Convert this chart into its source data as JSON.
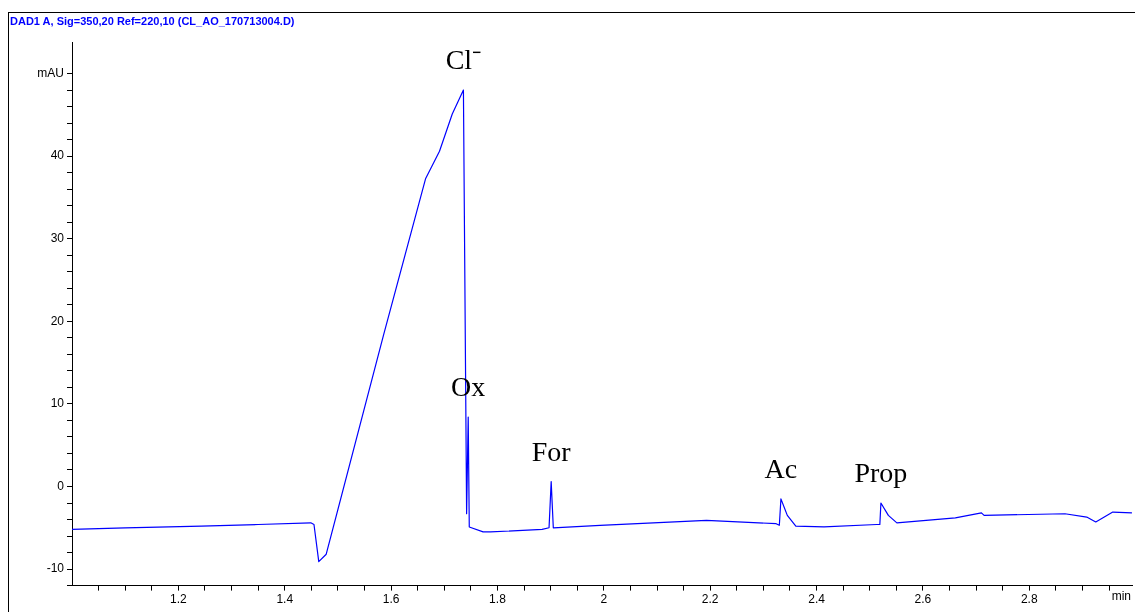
{
  "chart_data": {
    "type": "line",
    "title": "DAD1 A, Sig=350,20 Ref=220,10 (CL_AO_170713004.D)",
    "xlabel": "min",
    "x": [
      1.0,
      1.1,
      1.243,
      1.35,
      1.449,
      1.455,
      1.464,
      1.478,
      1.586,
      1.665,
      1.691,
      1.715,
      1.736,
      1.742,
      1.745,
      1.747,
      1.773,
      1.787,
      1.884,
      1.897,
      1.901,
      1.905,
      1.993,
      2.193,
      2.324,
      2.33,
      2.333,
      2.345,
      2.361,
      2.414,
      2.513,
      2.519,
      2.521,
      2.535,
      2.551,
      2.661,
      2.71,
      2.715,
      2.867,
      2.908,
      2.925,
      2.957,
      2.993
    ],
    "series": [
      {
        "color": "#0000ff",
        "values": [
          -5.2,
          -5.0,
          -4.8,
          -4.6,
          -4.4,
          -4.6,
          -9.1,
          -8.2,
          18.4,
          37.3,
          40.6,
          45.1,
          48.0,
          -3.3,
          8.4,
          -4.9,
          -5.5,
          -5.5,
          -5.2,
          -5.0,
          0.6,
          -5.0,
          -4.7,
          -4.1,
          -4.5,
          -4.7,
          -1.5,
          -3.5,
          -4.8,
          -4.9,
          -4.6,
          -4.6,
          -2.0,
          -3.5,
          -4.4,
          -3.8,
          -3.2,
          -3.5,
          -3.3,
          -3.7,
          -4.3,
          -3.1,
          -3.2
        ]
      }
    ],
    "xlim": [
      1.0,
      2.995
    ],
    "ylim": [
      -12,
      53.8
    ],
    "xticks": [
      {
        "value": 1.05,
        "label": null
      },
      {
        "value": 1.1,
        "label": null
      },
      {
        "value": 1.15,
        "label": null
      },
      1.2,
      {
        "value": 1.25,
        "label": null
      },
      {
        "value": 1.3,
        "label": null
      },
      {
        "value": 1.35,
        "label": null
      },
      1.4,
      {
        "value": 1.45,
        "label": null
      },
      {
        "value": 1.5,
        "label": null
      },
      {
        "value": 1.55,
        "label": null
      },
      1.6,
      {
        "value": 1.65,
        "label": null
      },
      {
        "value": 1.7,
        "label": null
      },
      {
        "value": 1.75,
        "label": null
      },
      1.8,
      {
        "value": 1.85,
        "label": null
      },
      {
        "value": 1.9,
        "label": null
      },
      {
        "value": 1.95,
        "label": null
      },
      2,
      {
        "value": 2.05,
        "label": null
      },
      {
        "value": 2.1,
        "label": null
      },
      {
        "value": 2.15,
        "label": null
      },
      2.2,
      {
        "value": 2.25,
        "label": null
      },
      {
        "value": 2.3,
        "label": null
      },
      {
        "value": 2.35,
        "label": null
      },
      2.4,
      {
        "value": 2.45,
        "label": null
      },
      {
        "value": 2.5,
        "label": null
      },
      {
        "value": 2.55,
        "label": null
      },
      2.6,
      {
        "value": 2.65,
        "label": null
      },
      {
        "value": 2.7,
        "label": null
      },
      {
        "value": 2.75,
        "label": null
      },
      2.8,
      {
        "value": 2.85,
        "label": null
      },
      {
        "value": 2.9,
        "label": null
      },
      {
        "value": 2.95,
        "label": null
      }
    ],
    "yticks": [
      {
        "value": -12,
        "label": null
      },
      -10,
      {
        "value": -8,
        "label": null
      },
      {
        "value": -6,
        "label": null
      },
      {
        "value": -4,
        "label": null
      },
      {
        "value": -2,
        "label": null
      },
      0,
      {
        "value": 2,
        "label": null
      },
      {
        "value": 4,
        "label": null
      },
      {
        "value": 6,
        "label": null
      },
      {
        "value": 8,
        "label": null
      },
      10,
      {
        "value": 12,
        "label": null
      },
      {
        "value": 14,
        "label": null
      },
      {
        "value": 16,
        "label": null
      },
      {
        "value": 18,
        "label": null
      },
      20,
      {
        "value": 22,
        "label": null
      },
      {
        "value": 24,
        "label": null
      },
      {
        "value": 26,
        "label": null
      },
      {
        "value": 28,
        "label": null
      },
      30,
      {
        "value": 32,
        "label": null
      },
      {
        "value": 34,
        "label": null
      },
      {
        "value": 36,
        "label": null
      },
      {
        "value": 38,
        "label": null
      },
      40,
      {
        "value": 42,
        "label": null
      },
      {
        "value": 44,
        "label": null
      },
      {
        "value": 46,
        "label": null
      },
      {
        "value": 48,
        "label": null
      },
      {
        "value": 50,
        "label": "mAU"
      }
    ],
    "annotations": [
      {
        "text": "Cl⁻",
        "x": 1.736,
        "y": 48.0
      },
      {
        "text": "Ox",
        "x": 1.745,
        "y": 8.4
      },
      {
        "text": "For",
        "x": 1.901,
        "y": 0.6
      },
      {
        "text": "Ac",
        "x": 2.333,
        "y": -1.5
      },
      {
        "text": "Prop",
        "x": 2.521,
        "y": -2.0
      }
    ]
  }
}
